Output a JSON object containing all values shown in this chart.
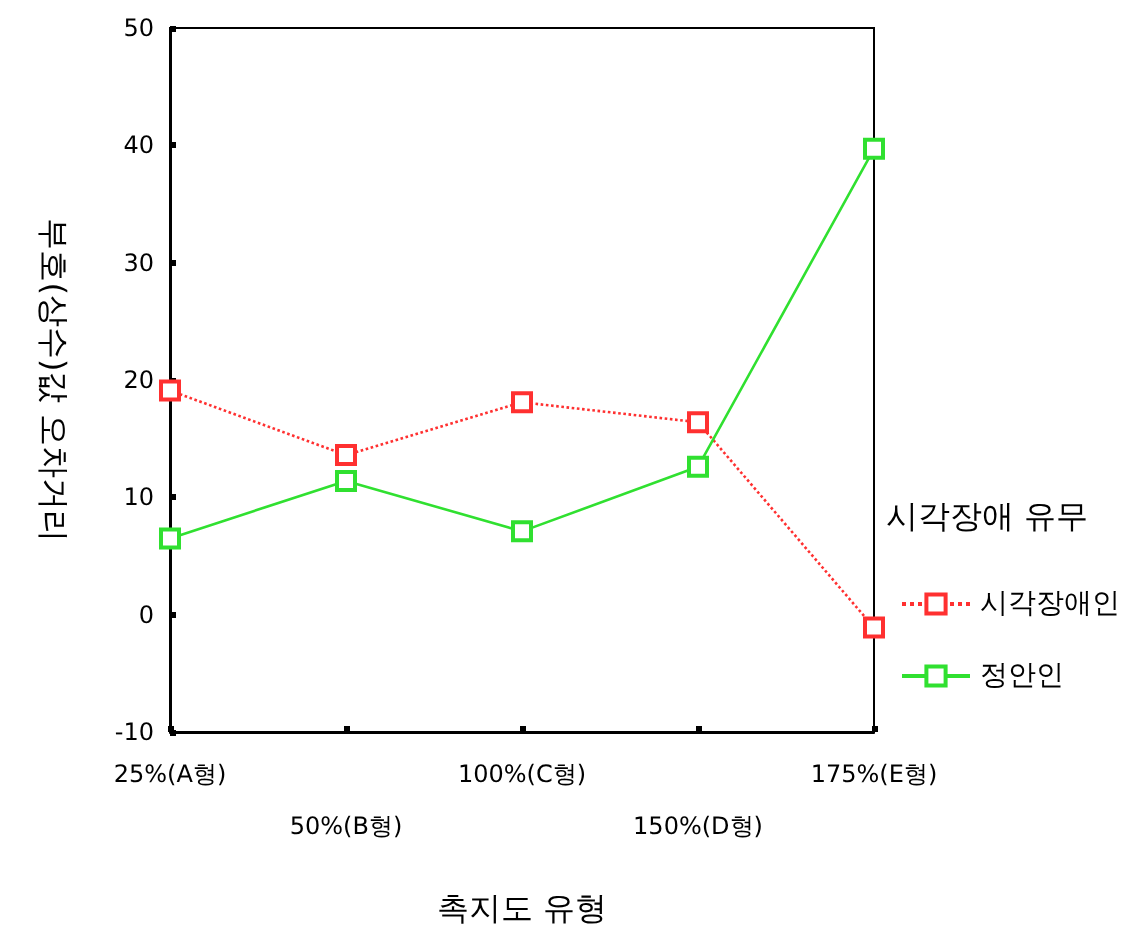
{
  "chart_data": {
    "type": "line",
    "xlabel": "촉지도 유형",
    "ylabel": "부호(상수)값 오차거리",
    "legend_title": "시각장애 유무",
    "categories": [
      "25%(A형)",
      "50%(B형)",
      "100%(C형)",
      "150%(D형)",
      "175%(E형)"
    ],
    "series": [
      {
        "name": "시각장애인",
        "color": "#ff3030",
        "line_style": "dotted",
        "values": [
          19.1,
          13.6,
          18.1,
          16.4,
          -1.1
        ]
      },
      {
        "name": "정안인",
        "color": "#30e030",
        "line_style": "solid",
        "values": [
          6.5,
          11.4,
          7.1,
          12.6,
          39.7
        ]
      }
    ],
    "ylim": [
      -10,
      50
    ],
    "yticks": [
      -10,
      0,
      10,
      20,
      30,
      40,
      50
    ],
    "grid": false,
    "legend": "right",
    "marker": "square"
  }
}
